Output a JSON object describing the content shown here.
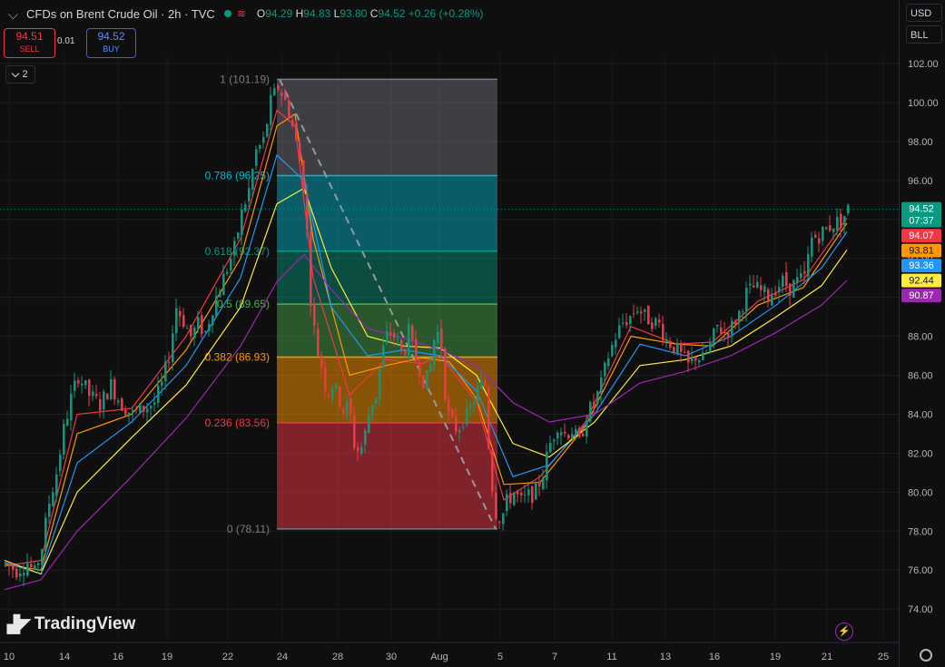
{
  "header": {
    "symbol_title": "CFDs on Brent Crude Oil · 2h · TVC",
    "ohlc": {
      "o_label": "O",
      "o": "94.29",
      "h_label": "H",
      "h": "94.83",
      "l_label": "L",
      "l": "93.80",
      "c_label": "C",
      "c": "94.52",
      "change": "+0.26 (+0.28%)"
    }
  },
  "trade": {
    "sell_price": "94.51",
    "sell_label": "SELL",
    "spread": "0.01",
    "buy_price": "94.52",
    "buy_label": "BUY"
  },
  "layers_count": "2",
  "right_controls": {
    "currency": "USD",
    "unit": "BLL"
  },
  "branding": "TradingView",
  "colors": {
    "up": "#089981",
    "down": "#f23645",
    "ema_red": "#f23645",
    "ema_orange": "#ff9800",
    "ema_blue": "#2196f3",
    "ema_yellow": "#ffeb3b",
    "ema_purple": "#9c27b0"
  },
  "chart_data": {
    "type": "candlestick",
    "y_ticks": [
      "102.00",
      "100.00",
      "98.00",
      "96.00",
      "94.00",
      "92.00",
      "90.00",
      "88.00",
      "86.00",
      "84.00",
      "82.00",
      "80.00",
      "78.00",
      "76.00",
      "74.00"
    ],
    "y_tick_values": [
      102,
      100,
      98,
      96,
      94,
      92,
      90,
      88,
      86,
      84,
      82,
      80,
      78,
      76,
      74
    ],
    "ylim": [
      72.5,
      103.5
    ],
    "x_ticks": [
      "10",
      "14",
      "16",
      "19",
      "22",
      "24",
      "28",
      "30",
      "Aug",
      "5",
      "7",
      "11",
      "13",
      "16",
      "19",
      "21",
      "25"
    ],
    "close_path": [
      [
        0,
        76.3
      ],
      [
        12,
        76.0
      ],
      [
        24,
        76.4
      ],
      [
        32,
        75.8
      ],
      [
        40,
        77.2
      ],
      [
        48,
        79.5
      ],
      [
        56,
        81.0
      ],
      [
        64,
        83.2
      ],
      [
        72,
        84.8
      ],
      [
        80,
        86.0
      ],
      [
        92,
        85.0
      ],
      [
        104,
        84.5
      ],
      [
        116,
        85.5
      ],
      [
        128,
        84.5
      ],
      [
        140,
        84.0
      ],
      [
        152,
        84.3
      ],
      [
        164,
        84.6
      ],
      [
        172,
        85.5
      ],
      [
        180,
        87.0
      ],
      [
        188,
        89.5
      ],
      [
        196,
        88.8
      ],
      [
        204,
        88.0
      ],
      [
        212,
        88.6
      ],
      [
        220,
        88.2
      ],
      [
        228,
        89.5
      ],
      [
        236,
        90.5
      ],
      [
        244,
        91.5
      ],
      [
        252,
        92.5
      ],
      [
        260,
        94.3
      ],
      [
        268,
        95.5
      ],
      [
        276,
        97.5
      ],
      [
        284,
        98.0
      ],
      [
        292,
        100.0
      ],
      [
        300,
        100.8
      ],
      [
        306,
        100.3
      ],
      [
        312,
        99.5
      ],
      [
        318,
        98.4
      ],
      [
        324,
        97.0
      ],
      [
        330,
        95.0
      ],
      [
        336,
        90.0
      ],
      [
        342,
        87.5
      ],
      [
        348,
        86.5
      ],
      [
        354,
        85.0
      ],
      [
        360,
        85.5
      ],
      [
        366,
        85.0
      ],
      [
        372,
        84.2
      ],
      [
        378,
        84.5
      ],
      [
        384,
        82.5
      ],
      [
        390,
        82.0
      ],
      [
        396,
        83.0
      ],
      [
        402,
        84.5
      ],
      [
        408,
        85.0
      ],
      [
        414,
        87.0
      ],
      [
        420,
        88.0
      ],
      [
        426,
        88.2
      ],
      [
        432,
        87.6
      ],
      [
        438,
        87.0
      ],
      [
        444,
        88.2
      ],
      [
        450,
        87.0
      ],
      [
        456,
        86.4
      ],
      [
        462,
        85.5
      ],
      [
        468,
        86.5
      ],
      [
        474,
        88.5
      ],
      [
        480,
        87.5
      ],
      [
        486,
        84.0
      ],
      [
        492,
        83.5
      ],
      [
        498,
        83.2
      ],
      [
        504,
        83.8
      ],
      [
        510,
        84.0
      ],
      [
        516,
        84.8
      ],
      [
        522,
        85.5
      ],
      [
        528,
        85.5
      ],
      [
        534,
        81.0
      ],
      [
        540,
        79.0
      ],
      [
        546,
        78.6
      ],
      [
        552,
        79.5
      ],
      [
        560,
        80.0
      ],
      [
        568,
        79.5
      ],
      [
        576,
        79.8
      ],
      [
        584,
        80.0
      ],
      [
        592,
        81.0
      ],
      [
        600,
        82.5
      ],
      [
        608,
        83.5
      ],
      [
        616,
        83.0
      ],
      [
        624,
        83.2
      ],
      [
        632,
        82.5
      ],
      [
        640,
        84.0
      ],
      [
        648,
        84.5
      ],
      [
        656,
        85.5
      ],
      [
        664,
        87.0
      ],
      [
        672,
        88.0
      ],
      [
        680,
        88.7
      ],
      [
        688,
        89.0
      ],
      [
        696,
        89.5
      ],
      [
        704,
        89.0
      ],
      [
        712,
        88.8
      ],
      [
        720,
        88.6
      ],
      [
        728,
        87.8
      ],
      [
        736,
        87.5
      ],
      [
        744,
        87.0
      ],
      [
        752,
        86.5
      ],
      [
        760,
        87.0
      ],
      [
        768,
        86.8
      ],
      [
        776,
        87.5
      ],
      [
        784,
        88.5
      ],
      [
        792,
        88.2
      ],
      [
        800,
        88.5
      ],
      [
        808,
        89.2
      ],
      [
        816,
        90.2
      ],
      [
        824,
        90.5
      ],
      [
        832,
        90.3
      ],
      [
        840,
        90.0
      ],
      [
        848,
        90.5
      ],
      [
        856,
        90.8
      ],
      [
        864,
        90.5
      ],
      [
        872,
        90.8
      ],
      [
        880,
        91.0
      ],
      [
        888,
        93.0
      ],
      [
        896,
        93.2
      ],
      [
        904,
        93.5
      ],
      [
        912,
        93.8
      ],
      [
        920,
        93.9
      ],
      [
        928,
        94.52
      ]
    ],
    "ema_lines": [
      {
        "name": "94.07",
        "color": "#f23645",
        "points": [
          [
            0,
            76.2
          ],
          [
            40,
            76.5
          ],
          [
            80,
            84.0
          ],
          [
            140,
            84.3
          ],
          [
            200,
            88.0
          ],
          [
            260,
            93.0
          ],
          [
            300,
            99.6
          ],
          [
            320,
            98.8
          ],
          [
            340,
            91.0
          ],
          [
            380,
            85.0
          ],
          [
            420,
            86.8
          ],
          [
            460,
            86.6
          ],
          [
            480,
            87.0
          ],
          [
            520,
            84.6
          ],
          [
            550,
            79.6
          ],
          [
            590,
            80.8
          ],
          [
            640,
            83.6
          ],
          [
            690,
            88.5
          ],
          [
            740,
            87.6
          ],
          [
            780,
            87.7
          ],
          [
            830,
            89.8
          ],
          [
            880,
            90.9
          ],
          [
            928,
            94.07
          ]
        ]
      },
      {
        "name": "93.81",
        "color": "#ff9800",
        "points": [
          [
            0,
            76.3
          ],
          [
            40,
            76.0
          ],
          [
            80,
            83.0
          ],
          [
            140,
            84.0
          ],
          [
            200,
            87.3
          ],
          [
            260,
            92.0
          ],
          [
            300,
            98.8
          ],
          [
            320,
            99.4
          ],
          [
            340,
            93.0
          ],
          [
            380,
            86.0
          ],
          [
            420,
            86.5
          ],
          [
            460,
            86.9
          ],
          [
            490,
            86.7
          ],
          [
            520,
            84.8
          ],
          [
            550,
            80.4
          ],
          [
            590,
            80.5
          ],
          [
            640,
            83.4
          ],
          [
            690,
            88.0
          ],
          [
            740,
            87.6
          ],
          [
            780,
            87.5
          ],
          [
            830,
            89.6
          ],
          [
            880,
            90.5
          ],
          [
            928,
            93.81
          ]
        ]
      },
      {
        "name": "93.36",
        "color": "#2196f3",
        "points": [
          [
            0,
            76.4
          ],
          [
            40,
            75.8
          ],
          [
            80,
            81.5
          ],
          [
            140,
            83.6
          ],
          [
            200,
            86.5
          ],
          [
            260,
            91.0
          ],
          [
            300,
            97.3
          ],
          [
            330,
            96.0
          ],
          [
            360,
            89.5
          ],
          [
            400,
            87.0
          ],
          [
            440,
            87.3
          ],
          [
            480,
            87.0
          ],
          [
            520,
            85.2
          ],
          [
            560,
            80.8
          ],
          [
            600,
            81.4
          ],
          [
            650,
            84.0
          ],
          [
            700,
            87.6
          ],
          [
            750,
            87.0
          ],
          [
            800,
            88.0
          ],
          [
            850,
            89.6
          ],
          [
            900,
            91.5
          ],
          [
            928,
            93.36
          ]
        ]
      },
      {
        "name": "92.44",
        "color": "#ffeb3b",
        "points": [
          [
            0,
            76.5
          ],
          [
            40,
            75.8
          ],
          [
            80,
            80.0
          ],
          [
            140,
            82.8
          ],
          [
            200,
            85.5
          ],
          [
            260,
            89.5
          ],
          [
            300,
            94.8
          ],
          [
            330,
            95.6
          ],
          [
            360,
            91.5
          ],
          [
            400,
            88.0
          ],
          [
            440,
            87.5
          ],
          [
            480,
            87.4
          ],
          [
            520,
            86.0
          ],
          [
            560,
            82.5
          ],
          [
            600,
            81.8
          ],
          [
            650,
            83.6
          ],
          [
            700,
            86.5
          ],
          [
            750,
            86.8
          ],
          [
            800,
            87.5
          ],
          [
            850,
            89.0
          ],
          [
            900,
            90.6
          ],
          [
            928,
            92.44
          ]
        ]
      },
      {
        "name": "90.87",
        "color": "#9c27b0",
        "points": [
          [
            0,
            75.0
          ],
          [
            40,
            75.5
          ],
          [
            80,
            78.0
          ],
          [
            140,
            80.8
          ],
          [
            200,
            83.8
          ],
          [
            260,
            87.5
          ],
          [
            300,
            90.8
          ],
          [
            330,
            92.2
          ],
          [
            360,
            90.4
          ],
          [
            400,
            88.4
          ],
          [
            440,
            87.9
          ],
          [
            480,
            87.3
          ],
          [
            520,
            86.5
          ],
          [
            560,
            84.6
          ],
          [
            600,
            83.6
          ],
          [
            650,
            84.0
          ],
          [
            700,
            85.6
          ],
          [
            750,
            86.2
          ],
          [
            800,
            87.0
          ],
          [
            850,
            88.2
          ],
          [
            900,
            89.6
          ],
          [
            928,
            90.87
          ]
        ]
      }
    ],
    "fib_levels": [
      {
        "ratio": "1",
        "price": "101.19",
        "label": "1 (101.19)",
        "value": 101.19,
        "color": "#787b86"
      },
      {
        "ratio": "0.786",
        "price": "96.25",
        "label": "0.786 (96.25)",
        "value": 96.25,
        "color": "#00bcd4"
      },
      {
        "ratio": "0.618",
        "price": "92.37",
        "label": "0.618 (92.37)",
        "value": 92.37,
        "color": "#089981"
      },
      {
        "ratio": "0.5",
        "price": "89.65",
        "label": "0.5 (89.65)",
        "value": 89.65,
        "color": "#4caf50"
      },
      {
        "ratio": "0.382",
        "price": "86.93",
        "label": "0.382 (86.93)",
        "value": 86.93,
        "color": "#ff9800"
      },
      {
        "ratio": "0.236",
        "price": "83.56",
        "label": "0.236 (83.56)",
        "value": 83.56,
        "color": "#f23645"
      },
      {
        "ratio": "0",
        "price": "78.11",
        "label": "0 (78.11)",
        "value": 78.11,
        "color": "#787b86"
      }
    ],
    "price_tags": [
      {
        "text": "94.52",
        "sub": "07:37",
        "value": 94.52,
        "color": "#089981"
      },
      {
        "text": "94.07",
        "value": 94.07,
        "color": "#f23645"
      },
      {
        "text": "93.81",
        "value": 93.81,
        "color": "#ff9800"
      },
      {
        "text": "93.36",
        "value": 93.36,
        "color": "#2196f3"
      },
      {
        "text": "92.44",
        "value": 92.44,
        "color": "#ffeb3b"
      },
      {
        "text": "90.87",
        "value": 90.87,
        "color": "#9c27b0"
      }
    ]
  }
}
